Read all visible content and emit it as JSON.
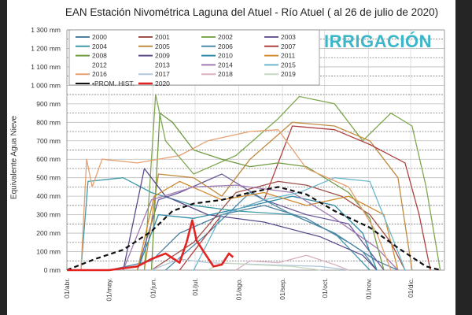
{
  "chart_data": {
    "type": "line",
    "title": "EAN Estación Nivométrica Laguna del Atuel - Río Atuel  ( al 26 de julio de 2020)",
    "ylabel": "Equivalente Agua Nieve",
    "xlabel": "",
    "ylim": [
      0,
      1300
    ],
    "yticks": [
      "0 mm",
      "100 mm",
      "200 mm",
      "300 mm",
      "400 mm",
      "500 mm",
      "600 mm",
      "700 mm",
      "800 mm",
      "900 mm",
      "1 000 mm",
      "1 100 mm",
      "1 200 mm",
      "1 300 mm"
    ],
    "xticks": [
      "01/abr.",
      "01/may.",
      "01/jun.",
      "01/jul.",
      "01/ago.",
      "01/sep.",
      "01/oct.",
      "01/nov.",
      "01/dic."
    ],
    "xtick_days": [
      0,
      30,
      61,
      91,
      122,
      153,
      183,
      214,
      244
    ],
    "x_unit": "days since 01/abr",
    "xlim": [
      0,
      268
    ],
    "grid": true,
    "legend_position": "top",
    "logo_text": "IRRIGACIÓN",
    "series": [
      {
        "name": "2000",
        "color": "#4e7fa0",
        "points": [
          [
            30,
            0
          ],
          [
            60,
            50
          ],
          [
            80,
            200
          ],
          [
            110,
            300
          ],
          [
            140,
            350
          ],
          [
            170,
            280
          ],
          [
            200,
            150
          ],
          [
            220,
            50
          ],
          [
            235,
            0
          ]
        ]
      },
      {
        "name": "2001",
        "color": "#a0504a",
        "points": [
          [
            60,
            0
          ],
          [
            90,
            150
          ],
          [
            120,
            420
          ],
          [
            150,
            480
          ],
          [
            170,
            460
          ],
          [
            195,
            400
          ],
          [
            215,
            300
          ],
          [
            230,
            150
          ],
          [
            240,
            0
          ]
        ]
      },
      {
        "name": "2002",
        "color": "#7fa850",
        "points": [
          [
            55,
            0
          ],
          [
            63,
            950
          ],
          [
            70,
            700
          ],
          [
            90,
            520
          ],
          [
            120,
            620
          ],
          [
            150,
            820
          ],
          [
            165,
            940
          ],
          [
            190,
            900
          ],
          [
            210,
            700
          ],
          [
            230,
            850
          ],
          [
            245,
            780
          ],
          [
            255,
            450
          ],
          [
            265,
            0
          ]
        ]
      },
      {
        "name": "2003",
        "color": "#6a5a9a",
        "points": [
          [
            50,
            0
          ],
          [
            65,
            380
          ],
          [
            80,
            420
          ],
          [
            110,
            520
          ],
          [
            140,
            380
          ],
          [
            170,
            300
          ],
          [
            200,
            250
          ],
          [
            225,
            0
          ]
        ]
      },
      {
        "name": "2004",
        "color": "#3f9aa8",
        "points": [
          [
            10,
            0
          ],
          [
            15,
            480
          ],
          [
            40,
            500
          ],
          [
            60,
            420
          ],
          [
            90,
            350
          ],
          [
            120,
            320
          ],
          [
            160,
            300
          ],
          [
            190,
            200
          ],
          [
            215,
            0
          ]
        ]
      },
      {
        "name": "2005",
        "color": "#c08a40",
        "points": [
          [
            55,
            0
          ],
          [
            65,
            520
          ],
          [
            90,
            500
          ],
          [
            110,
            400
          ],
          [
            130,
            600
          ],
          [
            160,
            800
          ],
          [
            190,
            780
          ],
          [
            215,
            700
          ],
          [
            235,
            500
          ],
          [
            245,
            0
          ]
        ]
      },
      {
        "name": "2006",
        "color": "#4a8aa8",
        "points": [
          [
            70,
            0
          ],
          [
            100,
            200
          ],
          [
            130,
            420
          ],
          [
            160,
            300
          ],
          [
            190,
            200
          ],
          [
            210,
            100
          ],
          [
            220,
            0
          ]
        ]
      },
      {
        "name": "2007",
        "color": "#b04040",
        "points": [
          [
            80,
            0
          ],
          [
            110,
            300
          ],
          [
            140,
            380
          ],
          [
            160,
            780
          ],
          [
            190,
            760
          ],
          [
            215,
            680
          ],
          [
            240,
            580
          ],
          [
            250,
            300
          ],
          [
            258,
            0
          ]
        ]
      },
      {
        "name": "2008",
        "color": "#6f9a40",
        "points": [
          [
            60,
            0
          ],
          [
            66,
            850
          ],
          [
            75,
            800
          ],
          [
            90,
            650
          ],
          [
            110,
            600
          ],
          [
            130,
            560
          ],
          [
            150,
            580
          ],
          [
            170,
            560
          ],
          [
            200,
            420
          ],
          [
            215,
            280
          ],
          [
            225,
            0
          ]
        ]
      },
      {
        "name": "2009",
        "color": "#5a4a8a",
        "points": [
          [
            40,
            0
          ],
          [
            55,
            550
          ],
          [
            70,
            400
          ],
          [
            100,
            300
          ],
          [
            140,
            260
          ],
          [
            180,
            180
          ],
          [
            210,
            80
          ],
          [
            220,
            0
          ]
        ]
      },
      {
        "name": "2010",
        "color": "#2e8aa8",
        "points": [
          [
            50,
            0
          ],
          [
            65,
            300
          ],
          [
            90,
            280
          ],
          [
            120,
            330
          ],
          [
            160,
            400
          ],
          [
            190,
            350
          ],
          [
            210,
            200
          ],
          [
            220,
            0
          ]
        ]
      },
      {
        "name": "2011",
        "color": "#d08a30",
        "points": [
          [
            50,
            0
          ],
          [
            62,
            400
          ],
          [
            80,
            480
          ],
          [
            110,
            380
          ],
          [
            140,
            420
          ],
          [
            170,
            350
          ],
          [
            200,
            400
          ],
          [
            225,
            300
          ],
          [
            235,
            0
          ]
        ]
      },
      {
        "name": "2014",
        "color": "#a07ab0",
        "points": [
          [
            40,
            0
          ],
          [
            60,
            380
          ],
          [
            90,
            450
          ],
          [
            120,
            460
          ],
          [
            160,
            420
          ],
          [
            190,
            280
          ],
          [
            220,
            120
          ],
          [
            235,
            0
          ]
        ]
      },
      {
        "name": "2015",
        "color": "#6ab8cc",
        "points": [
          [
            90,
            0
          ],
          [
            110,
            300
          ],
          [
            140,
            380
          ],
          [
            165,
            420
          ],
          [
            190,
            500
          ],
          [
            215,
            480
          ],
          [
            235,
            100
          ],
          [
            240,
            0
          ]
        ]
      },
      {
        "name": "2016",
        "color": "#e6a070",
        "points": [
          [
            10,
            0
          ],
          [
            14,
            600
          ],
          [
            18,
            450
          ],
          [
            25,
            600
          ],
          [
            50,
            580
          ],
          [
            80,
            620
          ],
          [
            100,
            700
          ],
          [
            130,
            750
          ],
          [
            150,
            760
          ],
          [
            170,
            550
          ],
          [
            200,
            450
          ],
          [
            220,
            200
          ],
          [
            230,
            0
          ]
        ]
      },
      {
        "name": "2017",
        "color": "#b0c8dc",
        "points": [
          [
            60,
            0
          ],
          [
            80,
            60
          ],
          [
            100,
            40
          ],
          [
            140,
            30
          ],
          [
            180,
            20
          ],
          [
            200,
            0
          ]
        ]
      },
      {
        "name": "2018",
        "color": "#d8b0c0",
        "points": [
          [
            120,
            0
          ],
          [
            130,
            50
          ],
          [
            150,
            40
          ],
          [
            170,
            80
          ],
          [
            190,
            30
          ],
          [
            200,
            0
          ]
        ]
      },
      {
        "name": "2019",
        "color": "#c8d8c0",
        "points": [
          [
            100,
            0
          ],
          [
            110,
            40
          ],
          [
            130,
            30
          ],
          [
            160,
            20
          ],
          [
            180,
            0
          ]
        ]
      },
      {
        "name": "PROM. HIST.",
        "color": "#111111",
        "dashed": true,
        "points": [
          [
            0,
            0
          ],
          [
            20,
            60
          ],
          [
            40,
            110
          ],
          [
            60,
            210
          ],
          [
            75,
            320
          ],
          [
            90,
            360
          ],
          [
            110,
            380
          ],
          [
            130,
            420
          ],
          [
            150,
            450
          ],
          [
            170,
            410
          ],
          [
            190,
            320
          ],
          [
            215,
            230
          ],
          [
            235,
            120
          ],
          [
            255,
            20
          ],
          [
            265,
            0
          ]
        ]
      },
      {
        "name": "2020",
        "color": "#e32222",
        "bold": true,
        "points": [
          [
            0,
            0
          ],
          [
            30,
            0
          ],
          [
            50,
            20
          ],
          [
            60,
            60
          ],
          [
            70,
            90
          ],
          [
            80,
            40
          ],
          [
            85,
            150
          ],
          [
            89,
            270
          ],
          [
            92,
            160
          ],
          [
            98,
            90
          ],
          [
            104,
            20
          ],
          [
            110,
            30
          ],
          [
            115,
            90
          ],
          [
            118,
            70
          ]
        ]
      }
    ],
    "legend": [
      "2000",
      "2001",
      "2002",
      "2003",
      "2004",
      "2005",
      "2006",
      "2007",
      "2008",
      "2009",
      "2010",
      "2011",
      "2012",
      "2013",
      "2014",
      "2015",
      "2016",
      "2017",
      "2018",
      "2019",
      "PROM. HIST.",
      "2020"
    ],
    "legend_colors": {
      "2000": "#4e7fa0",
      "2001": "#a0504a",
      "2002": "#7fa850",
      "2003": "#6a5a9a",
      "2004": "#3f9aa8",
      "2005": "#c08a40",
      "2006": "#4a8aa8",
      "2007": "#b04040",
      "2008": "#6f9a40",
      "2009": "#5a4a8a",
      "2010": "#2e8aa8",
      "2011": "#d08a30",
      "2012": "",
      "2013": "",
      "2014": "#a07ab0",
      "2015": "#6ab8cc",
      "2016": "#e6a070",
      "2017": "#b0c8dc",
      "2018": "#d8b0c0",
      "2019": "#c8d8c0",
      "PROM. HIST.": "#111111",
      "2020": "#e32222"
    }
  }
}
